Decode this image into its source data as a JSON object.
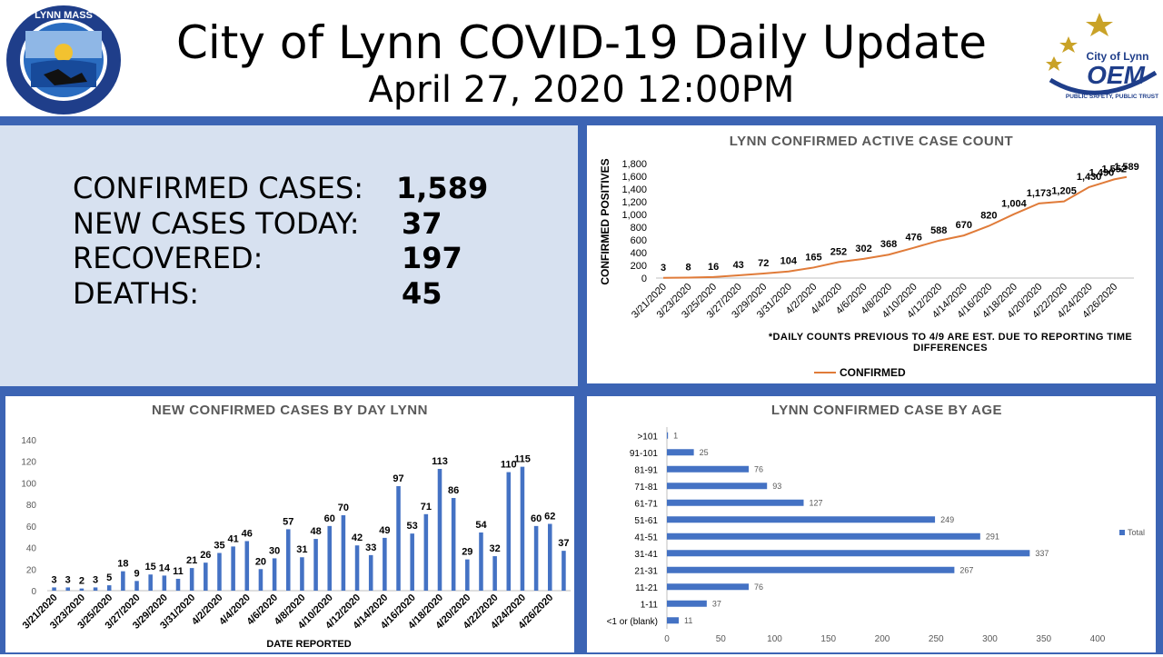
{
  "header": {
    "title": "City of Lynn COVID-19 Daily Update",
    "subtitle": "April 27, 2020 12:00PM",
    "seal_text": "LYNN MASS",
    "oem_text": "City of Lynn OEM",
    "oem_tagline": "PUBLIC SAFETY, PUBLIC TRUST"
  },
  "stats": [
    {
      "label": "CONFIRMED CASES:",
      "value": "1,589"
    },
    {
      "label": "NEW CASES TODAY:",
      "value": "37"
    },
    {
      "label": "RECOVERED:",
      "value": "197"
    },
    {
      "label": "DEATHS:",
      "value": "45"
    }
  ],
  "chart_data": [
    {
      "type": "line",
      "title": "LYNN CONFIRMED ACTIVE CASE COUNT",
      "ylabel": "CONFIRMED POSITIVES",
      "ylim": [
        0,
        1800
      ],
      "yticks": [
        "0",
        "200",
        "400",
        "600",
        "800",
        "1,000",
        "1,200",
        "1,400",
        "1,600",
        "1,800"
      ],
      "xtick_labels": [
        "3/21/2020",
        "3/23/2020",
        "3/25/2020",
        "3/27/2020",
        "3/29/2020",
        "3/31/2020",
        "4/2/2020",
        "4/4/2020",
        "4/6/2020",
        "4/8/2020",
        "4/10/2020",
        "4/12/2020",
        "4/14/2020",
        "4/16/2020",
        "4/18/2020",
        "4/20/2020",
        "4/22/2020",
        "4/24/2020",
        "4/26/2020"
      ],
      "x": [
        "3/21/2020",
        "3/23/2020",
        "3/25/2020",
        "3/27/2020",
        "3/29/2020",
        "3/31/2020",
        "4/2/2020",
        "4/4/2020",
        "4/6/2020",
        "4/8/2020",
        "4/10/2020",
        "4/12/2020",
        "4/14/2020",
        "4/16/2020",
        "4/18/2020",
        "4/20/2020",
        "4/22/2020",
        "4/24/2020",
        "4/25/2020",
        "4/26/2020",
        "4/27/2020"
      ],
      "series": [
        {
          "name": "CONFIRMED",
          "color": "#e07b39",
          "values": [
            3,
            8,
            16,
            43,
            72,
            104,
            165,
            252,
            302,
            368,
            476,
            588,
            670,
            820,
            1004,
            1173,
            1205,
            1430,
            1490,
            1552,
            1589
          ],
          "labels": [
            "3",
            "8",
            "16",
            "43",
            "72",
            "104",
            "165",
            "252",
            "302",
            "368",
            "476",
            "588",
            "670",
            "820",
            "1,004",
            "1,173",
            "1,205",
            "1,430",
            "1,490",
            "1,552",
            "1,589"
          ]
        }
      ],
      "note": "*DAILY COUNTS PREVIOUS TO 4/9 ARE EST. DUE TO REPORTING TIME DIFFERENCES",
      "legend": "bottom"
    },
    {
      "type": "bar",
      "title": "NEW CONFIRMED CASES BY DAY LYNN",
      "xlabel": "DATE REPORTED",
      "ylim": [
        0,
        140
      ],
      "yticks": [
        "0",
        "20",
        "40",
        "60",
        "80",
        "100",
        "120",
        "140"
      ],
      "xtick_labels": [
        "3/21/2020",
        "3/23/2020",
        "3/25/2020",
        "3/27/2020",
        "3/29/2020",
        "3/31/2020",
        "4/2/2020",
        "4/4/2020",
        "4/6/2020",
        "4/8/2020",
        "4/10/2020",
        "4/12/2020",
        "4/14/2020",
        "4/16/2020",
        "4/18/2020",
        "4/20/2020",
        "4/22/2020",
        "4/24/2020",
        "4/26/2020"
      ],
      "values": [
        3,
        3,
        2,
        3,
        5,
        18,
        9,
        15,
        14,
        11,
        21,
        26,
        35,
        41,
        46,
        20,
        30,
        57,
        31,
        48,
        60,
        70,
        42,
        33,
        49,
        97,
        53,
        71,
        113,
        86,
        29,
        54,
        32,
        110,
        115,
        60,
        62,
        37
      ],
      "color": "#4472c4"
    },
    {
      "type": "bar",
      "orientation": "horizontal",
      "title": "LYNN CONFIRMED CASE BY AGE",
      "categories": [
        ">101",
        "91-101",
        "81-91",
        "71-81",
        "61-71",
        "51-61",
        "41-51",
        "31-41",
        "21-31",
        "11-21",
        "1-11",
        "<1 or (blank)"
      ],
      "values": [
        1,
        25,
        76,
        93,
        127,
        249,
        291,
        337,
        267,
        76,
        37,
        11
      ],
      "xlim": [
        0,
        400
      ],
      "xticks": [
        "0",
        "50",
        "100",
        "150",
        "200",
        "250",
        "300",
        "350",
        "400"
      ],
      "series_name": "Total",
      "legend": "right",
      "color": "#4472c4"
    }
  ]
}
